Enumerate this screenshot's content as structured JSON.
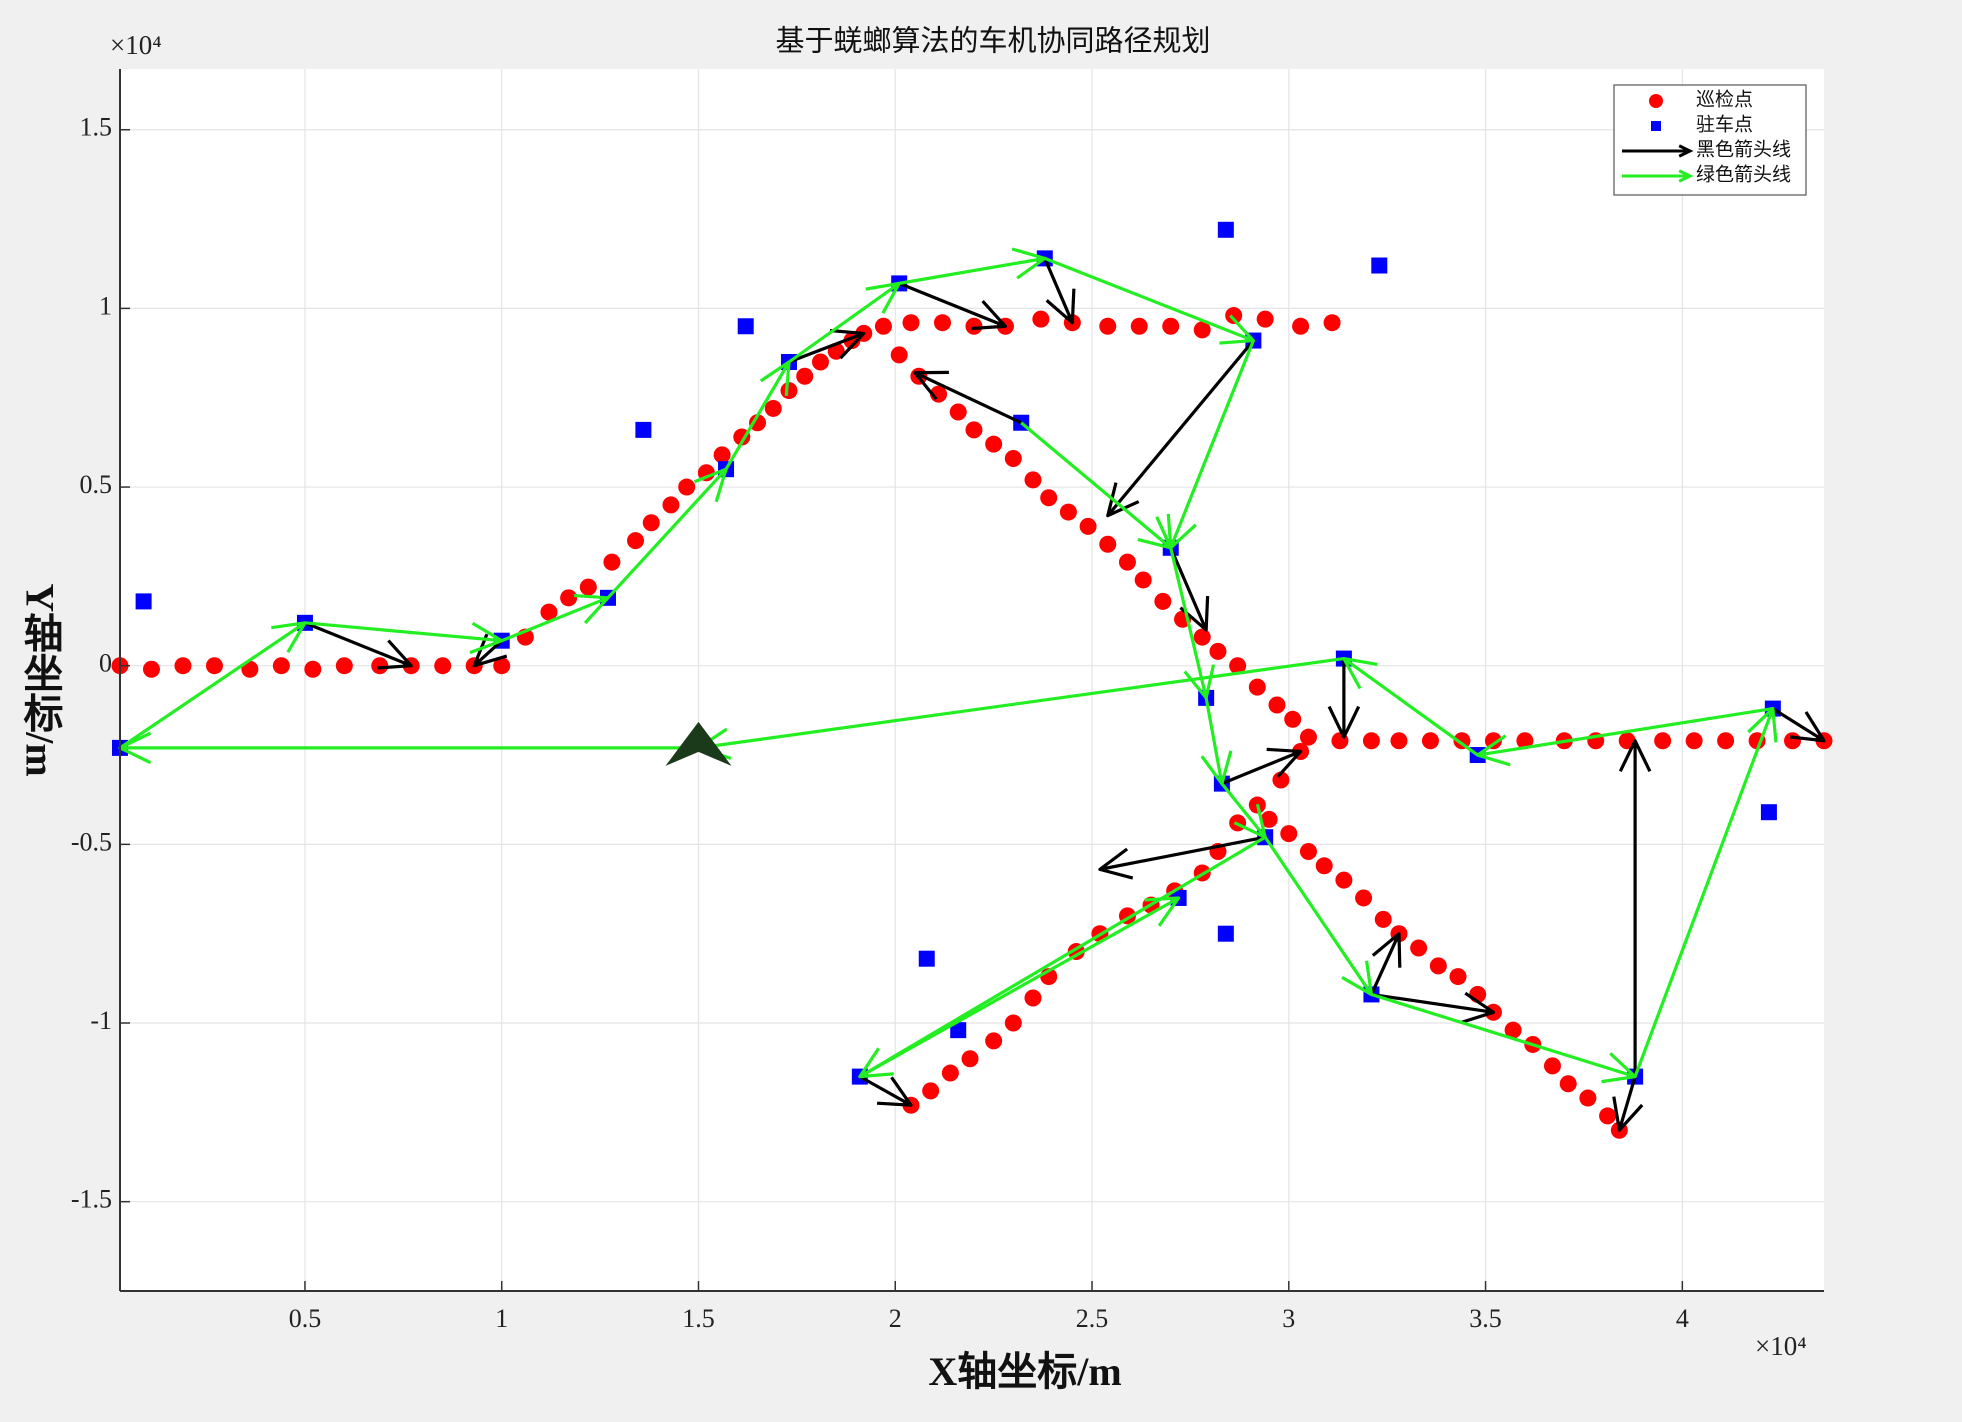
{
  "chart_data": {
    "type": "scatter",
    "title": "基于蜣螂算法的车机协同路径规划",
    "x_label": "X轴坐标/m",
    "y_label": "Y轴坐标/m",
    "x_multiplier": "×10⁴",
    "y_multiplier": "×10⁴",
    "xlim": [
      0.03,
      4.36
    ],
    "ylim": [
      -1.75,
      1.67
    ],
    "xticks": [
      0.5,
      1,
      1.5,
      2,
      2.5,
      3,
      3.5,
      4
    ],
    "yticks": [
      -1.5,
      -1,
      -0.5,
      0,
      0.5,
      1,
      1.5
    ],
    "grid": true,
    "legend": "northeast",
    "start": {
      "x": 1.5,
      "y": -0.23,
      "color": "#1a3a1a"
    },
    "series": [
      {
        "name": "巡检点",
        "color": "#ff0000",
        "marker": "circle",
        "x": [
          0.03,
          0.11,
          0.19,
          0.27,
          0.36,
          0.44,
          0.52,
          0.6,
          0.69,
          0.77,
          0.85,
          0.93,
          1.0,
          1.06,
          1.12,
          1.17,
          1.22,
          1.28,
          1.34,
          1.38,
          1.43,
          1.47,
          1.52,
          1.56,
          1.61,
          1.65,
          1.69,
          1.73,
          1.77,
          1.81,
          1.85,
          1.89,
          1.92,
          1.97,
          2.04,
          2.12,
          2.2,
          2.28,
          2.37,
          2.45,
          2.54,
          2.62,
          2.7,
          2.78,
          2.86,
          2.94,
          3.03,
          3.11,
          2.01,
          2.06,
          2.11,
          2.16,
          2.2,
          2.25,
          2.3,
          2.35,
          2.39,
          2.44,
          2.49,
          2.54,
          2.59,
          2.63,
          2.68,
          2.73,
          2.78,
          2.82,
          2.87,
          2.92,
          2.97,
          3.01,
          3.05,
          3.13,
          3.21,
          3.28,
          3.36,
          3.44,
          3.52,
          3.6,
          3.7,
          3.78,
          3.86,
          3.95,
          4.03,
          4.11,
          4.19,
          4.28,
          4.36,
          3.03,
          2.98,
          2.92,
          2.87,
          2.82,
          2.78,
          2.71,
          2.65,
          2.59,
          2.52,
          2.46,
          2.39,
          2.35,
          2.3,
          2.25,
          2.19,
          2.14,
          2.09,
          2.04,
          2.95,
          3.0,
          3.05,
          3.09,
          3.14,
          3.19,
          3.24,
          3.28,
          3.33,
          3.38,
          3.43,
          3.48,
          3.52,
          3.57,
          3.62,
          3.67,
          3.71,
          3.76,
          3.81,
          3.84
        ],
        "y": [
          0,
          -0.01,
          0,
          0,
          -0.01,
          0,
          -0.01,
          0,
          0,
          0,
          0,
          0,
          0,
          0.08,
          0.15,
          0.19,
          0.22,
          0.29,
          0.35,
          0.4,
          0.45,
          0.5,
          0.54,
          0.59,
          0.64,
          0.68,
          0.72,
          0.77,
          0.81,
          0.85,
          0.88,
          0.91,
          0.93,
          0.95,
          0.96,
          0.96,
          0.95,
          0.95,
          0.97,
          0.96,
          0.95,
          0.95,
          0.95,
          0.94,
          0.98,
          0.97,
          0.95,
          0.96,
          0.87,
          0.81,
          0.76,
          0.71,
          0.66,
          0.62,
          0.58,
          0.52,
          0.47,
          0.43,
          0.39,
          0.34,
          0.29,
          0.24,
          0.18,
          0.13,
          0.08,
          0.04,
          0,
          -0.06,
          -0.11,
          -0.15,
          -0.2,
          -0.21,
          -0.21,
          -0.21,
          -0.21,
          -0.21,
          -0.21,
          -0.21,
          -0.21,
          -0.21,
          -0.21,
          -0.21,
          -0.21,
          -0.21,
          -0.21,
          -0.21,
          -0.21,
          -0.24,
          -0.32,
          -0.39,
          -0.44,
          -0.52,
          -0.58,
          -0.63,
          -0.67,
          -0.7,
          -0.75,
          -0.8,
          -0.87,
          -0.93,
          -1.0,
          -1.05,
          -1.1,
          -1.14,
          -1.19,
          -1.23,
          -0.43,
          -0.47,
          -0.52,
          -0.56,
          -0.6,
          -0.65,
          -0.71,
          -0.75,
          -0.79,
          -0.84,
          -0.87,
          -0.92,
          -0.97,
          -1.02,
          -1.06,
          -1.12,
          -1.17,
          -1.21,
          -1.26,
          -1.3
        ]
      },
      {
        "name": "驻车点",
        "color": "#0000ff",
        "marker": "square",
        "x": [
          0.03,
          0.09,
          0.5,
          1.0,
          1.27,
          1.36,
          1.57,
          1.62,
          1.73,
          2.01,
          2.38,
          2.84,
          3.23,
          2.91,
          2.32,
          2.7,
          2.79,
          3.14,
          2.83,
          2.94,
          3.48,
          4.23,
          4.22,
          2.72,
          2.84,
          2.08,
          2.16,
          1.91,
          3.21,
          3.88
        ],
        "y": [
          -0.23,
          0.18,
          0.12,
          0.07,
          0.19,
          0.66,
          0.55,
          0.95,
          0.85,
          1.07,
          1.14,
          1.22,
          1.12,
          0.91,
          0.68,
          0.33,
          -0.09,
          0.02,
          -0.33,
          -0.48,
          -0.25,
          -0.12,
          -0.41,
          -0.65,
          -0.75,
          -0.82,
          -1.02,
          -1.15,
          -0.92,
          -1.15
        ]
      },
      {
        "name": "黑色箭头线",
        "color": "#000000",
        "marker": "arrow",
        "segments": [
          [
            2.91,
            0.91,
            2.54,
            0.42
          ],
          [
            3.88,
            -1.15,
            3.88,
            -0.21
          ],
          [
            3.14,
            0.02,
            3.14,
            -0.2
          ],
          [
            2.01,
            1.07,
            2.28,
            0.95
          ],
          [
            2.38,
            1.14,
            2.45,
            0.96
          ],
          [
            2.32,
            0.68,
            2.05,
            0.82
          ],
          [
            2.7,
            0.33,
            2.79,
            0.1
          ],
          [
            2.83,
            -0.33,
            3.03,
            -0.24
          ],
          [
            2.94,
            -0.48,
            2.52,
            -0.57
          ],
          [
            3.21,
            -0.92,
            3.28,
            -0.75
          ],
          [
            3.21,
            -0.92,
            3.52,
            -0.97
          ],
          [
            3.88,
            -1.15,
            3.84,
            -1.3
          ],
          [
            1.91,
            -1.15,
            2.04,
            -1.23
          ],
          [
            4.23,
            -0.12,
            4.36,
            -0.21
          ],
          [
            0.5,
            0.12,
            0.77,
            0.0
          ],
          [
            1.0,
            0.07,
            0.93,
            0.0
          ],
          [
            1.73,
            0.85,
            1.92,
            0.93
          ]
        ]
      },
      {
        "name": "绿色箭头线",
        "color": "#22ee22",
        "marker": "arrow",
        "segments": [
          [
            1.5,
            -0.23,
            0.03,
            -0.23
          ],
          [
            0.03,
            -0.23,
            0.5,
            0.12
          ],
          [
            0.5,
            0.12,
            1.0,
            0.07
          ],
          [
            1.0,
            0.07,
            1.27,
            0.19
          ],
          [
            1.27,
            0.19,
            1.57,
            0.55
          ],
          [
            1.57,
            0.55,
            1.73,
            0.85
          ],
          [
            1.73,
            0.85,
            2.01,
            1.07
          ],
          [
            2.01,
            1.07,
            2.38,
            1.14
          ],
          [
            2.38,
            1.14,
            2.91,
            0.91
          ],
          [
            2.91,
            0.91,
            2.7,
            0.33
          ],
          [
            2.32,
            0.68,
            2.7,
            0.33
          ],
          [
            2.7,
            0.33,
            2.79,
            -0.09
          ],
          [
            2.79,
            -0.09,
            2.83,
            -0.33
          ],
          [
            2.83,
            -0.33,
            2.94,
            -0.48
          ],
          [
            2.94,
            -0.48,
            1.91,
            -1.15
          ],
          [
            1.91,
            -1.15,
            2.72,
            -0.65
          ],
          [
            2.94,
            -0.48,
            3.21,
            -0.92
          ],
          [
            3.21,
            -0.92,
            3.88,
            -1.15
          ],
          [
            3.88,
            -1.15,
            4.23,
            -0.12
          ],
          [
            4.23,
            -0.12,
            3.48,
            -0.25
          ],
          [
            3.48,
            -0.25,
            3.14,
            0.02
          ],
          [
            3.14,
            0.02,
            1.5,
            -0.23
          ]
        ]
      }
    ]
  }
}
